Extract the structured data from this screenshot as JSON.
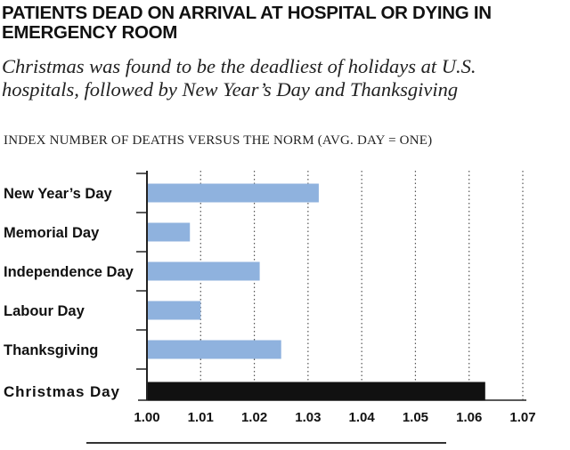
{
  "title": "PATIENTS DEAD ON ARRIVAL AT HOSPITAL OR DYING IN EMERGENCY ROOM",
  "subtitle": "Christmas was found to be the deadliest of holidays at U.S. hospitals, followed by New Year’s Day and Thanksgiving",
  "axis_note": "INDEX NUMBER OF DEATHS VERSUS THE NORM (AVG. DAY = ONE)",
  "colors": {
    "bar": "#8fb2de",
    "highlight_bar": "#111111",
    "grid": "#555555",
    "axis": "#222222"
  },
  "chart_data": {
    "type": "bar",
    "orientation": "horizontal",
    "categories": [
      "New Year’s Day",
      "Memorial Day",
      "Independence Day",
      "Labour Day",
      "Thanksgiving",
      "Christmas Day"
    ],
    "values": [
      1.032,
      1.008,
      1.021,
      1.01,
      1.025,
      1.063
    ],
    "highlight": "Christmas Day",
    "xlim": [
      1.0,
      1.07
    ],
    "xticks": [
      "1.00",
      "1.01",
      "1.02",
      "1.03",
      "1.04",
      "1.05",
      "1.06",
      "1.07"
    ],
    "grid": "vertical-dotted"
  }
}
